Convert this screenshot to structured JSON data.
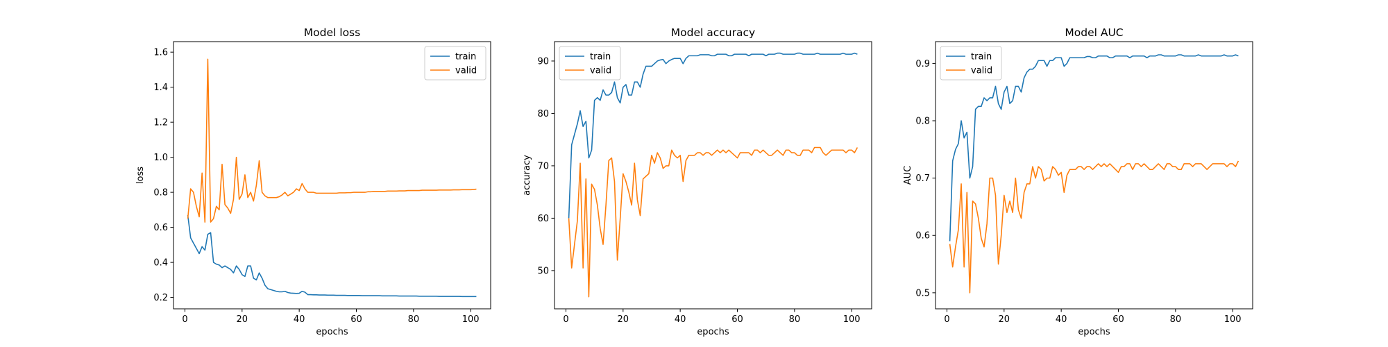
{
  "colors": {
    "train": "#1f77b4",
    "valid": "#ff7f0e",
    "axes": "#000000",
    "background": "#ffffff"
  },
  "chart_data": [
    {
      "type": "line",
      "title": "Model loss",
      "xlabel": "epochs",
      "ylabel": "loss",
      "xlim": [
        -4,
        107
      ],
      "ylim": [
        0.135,
        1.66
      ],
      "xticks": [
        0,
        20,
        40,
        60,
        80,
        100
      ],
      "yticks": [
        0.2,
        0.4,
        0.6,
        0.8,
        1.0,
        1.2,
        1.4,
        1.6
      ],
      "yticklabels": [
        "0.2",
        "0.4",
        "0.6",
        "0.8",
        "1.0",
        "1.2",
        "1.4",
        "1.6"
      ],
      "grid": false,
      "legend_position": "upper right",
      "series": [
        {
          "name": "train",
          "color": "#1f77b4",
          "values": [
            0.67,
            0.54,
            0.51,
            0.48,
            0.45,
            0.49,
            0.47,
            0.56,
            0.57,
            0.4,
            0.39,
            0.385,
            0.37,
            0.38,
            0.37,
            0.36,
            0.34,
            0.38,
            0.36,
            0.33,
            0.32,
            0.38,
            0.38,
            0.31,
            0.3,
            0.34,
            0.31,
            0.27,
            0.25,
            0.245,
            0.24,
            0.235,
            0.232,
            0.232,
            0.235,
            0.228,
            0.225,
            0.224,
            0.223,
            0.224,
            0.235,
            0.23,
            0.216,
            0.216,
            0.215,
            0.215,
            0.214,
            0.214,
            0.214,
            0.213,
            0.213,
            0.213,
            0.212,
            0.212,
            0.212,
            0.212,
            0.211,
            0.211,
            0.211,
            0.211,
            0.211,
            0.21,
            0.21,
            0.21,
            0.21,
            0.21,
            0.21,
            0.21,
            0.209,
            0.209,
            0.209,
            0.209,
            0.209,
            0.209,
            0.208,
            0.208,
            0.208,
            0.208,
            0.208,
            0.208,
            0.208,
            0.207,
            0.207,
            0.207,
            0.207,
            0.207,
            0.207,
            0.207,
            0.206,
            0.206,
            0.206,
            0.206,
            0.206,
            0.206,
            0.206,
            0.206,
            0.205,
            0.205,
            0.205,
            0.205,
            0.205,
            0.205
          ]
        },
        {
          "name": "valid",
          "color": "#ff7f0e",
          "values": [
            0.65,
            0.82,
            0.8,
            0.72,
            0.66,
            0.91,
            0.63,
            1.56,
            0.63,
            0.65,
            0.72,
            0.7,
            0.96,
            0.73,
            0.71,
            0.68,
            0.76,
            1.0,
            0.76,
            0.79,
            0.9,
            0.77,
            0.8,
            0.75,
            0.84,
            0.98,
            0.8,
            0.78,
            0.77,
            0.77,
            0.77,
            0.77,
            0.775,
            0.785,
            0.8,
            0.78,
            0.79,
            0.8,
            0.82,
            0.81,
            0.85,
            0.82,
            0.8,
            0.8,
            0.8,
            0.795,
            0.795,
            0.795,
            0.795,
            0.795,
            0.795,
            0.795,
            0.795,
            0.797,
            0.797,
            0.797,
            0.798,
            0.798,
            0.8,
            0.8,
            0.8,
            0.8,
            0.8,
            0.803,
            0.803,
            0.805,
            0.805,
            0.805,
            0.805,
            0.805,
            0.807,
            0.807,
            0.807,
            0.807,
            0.808,
            0.808,
            0.808,
            0.81,
            0.81,
            0.81,
            0.81,
            0.81,
            0.812,
            0.812,
            0.812,
            0.812,
            0.812,
            0.812,
            0.813,
            0.813,
            0.813,
            0.813,
            0.813,
            0.814,
            0.814,
            0.814,
            0.815,
            0.815,
            0.815,
            0.815,
            0.816,
            0.818
          ]
        }
      ]
    },
    {
      "type": "line",
      "title": "Model accuracy",
      "xlabel": "epochs",
      "ylabel": "accuracy",
      "xlim": [
        -4,
        107
      ],
      "ylim": [
        42.7,
        93.7
      ],
      "xticks": [
        0,
        20,
        40,
        60,
        80,
        100
      ],
      "yticks": [
        50,
        60,
        70,
        80,
        90
      ],
      "yticklabels": [
        "50",
        "60",
        "70",
        "80",
        "90"
      ],
      "grid": false,
      "legend_position": "upper left",
      "series": [
        {
          "name": "train",
          "color": "#1f77b4",
          "values": [
            60,
            74,
            76,
            78,
            80.5,
            77.5,
            78.5,
            71.5,
            73,
            82.5,
            83,
            82.5,
            84.5,
            83.5,
            83.5,
            84,
            86,
            83,
            82,
            85,
            85.5,
            83.5,
            83.5,
            86,
            86,
            85,
            87.5,
            89,
            89,
            89,
            89.5,
            90,
            90.2,
            90.3,
            89.5,
            90,
            90.3,
            90.5,
            90.5,
            90.5,
            89.5,
            90.5,
            91,
            91,
            91,
            91,
            91.2,
            91.2,
            91.2,
            91.2,
            91,
            91,
            91.3,
            91.3,
            91.3,
            91.3,
            91,
            91,
            91.3,
            91.3,
            91.3,
            91.3,
            91.3,
            91,
            91.3,
            91.3,
            91.3,
            91.3,
            91.3,
            91,
            91.3,
            91.3,
            91.3,
            91.5,
            91.5,
            91.3,
            91.3,
            91.3,
            91.3,
            91.3,
            91.5,
            91.5,
            91.3,
            91.3,
            91.3,
            91.3,
            91.3,
            91.5,
            91.3,
            91.3,
            91.3,
            91.3,
            91.3,
            91.3,
            91.3,
            91.3,
            91.5,
            91.3,
            91.3,
            91.3,
            91.5,
            91.3
          ]
        },
        {
          "name": "valid",
          "color": "#ff7f0e",
          "values": [
            60,
            50.5,
            55,
            59.5,
            70.5,
            50.5,
            67.5,
            45,
            66.5,
            65.5,
            62.5,
            58,
            55,
            62.5,
            71,
            71.5,
            67,
            52,
            60,
            68.5,
            67,
            65,
            62.5,
            70.5,
            63.5,
            60.5,
            67.5,
            68,
            68.5,
            72,
            70.5,
            72.5,
            71.5,
            69.5,
            70,
            70,
            73,
            72,
            71.5,
            72,
            67,
            71,
            72,
            72,
            72,
            72.5,
            72.5,
            72,
            72.5,
            72.5,
            72,
            72.5,
            73,
            72.5,
            73,
            72.5,
            73,
            72.5,
            72,
            71.5,
            72.5,
            72.5,
            72.5,
            72.5,
            72,
            73,
            73,
            72.5,
            73,
            72.5,
            72,
            72,
            72.5,
            73,
            72.5,
            72,
            73,
            73,
            72.5,
            72.5,
            72,
            72,
            73,
            73,
            73,
            72.5,
            73.5,
            73.5,
            73.5,
            72.5,
            72,
            72.5,
            73,
            73,
            73,
            73,
            73,
            72.5,
            73,
            73,
            72.5,
            73.5
          ]
        }
      ]
    },
    {
      "type": "line",
      "title": "Model AUC",
      "xlabel": "epochs",
      "ylabel": "AUC",
      "xlim": [
        -4,
        107
      ],
      "ylim": [
        0.472,
        0.938
      ],
      "xticks": [
        0,
        20,
        40,
        60,
        80,
        100
      ],
      "yticks": [
        0.5,
        0.6,
        0.7,
        0.8,
        0.9
      ],
      "yticklabels": [
        "0.5",
        "0.6",
        "0.7",
        "0.8",
        "0.9"
      ],
      "grid": false,
      "legend_position": "upper left",
      "series": [
        {
          "name": "train",
          "color": "#1f77b4",
          "values": [
            0.59,
            0.73,
            0.75,
            0.76,
            0.8,
            0.77,
            0.78,
            0.7,
            0.72,
            0.82,
            0.825,
            0.825,
            0.84,
            0.835,
            0.84,
            0.84,
            0.86,
            0.83,
            0.82,
            0.85,
            0.86,
            0.83,
            0.835,
            0.86,
            0.86,
            0.85,
            0.875,
            0.885,
            0.89,
            0.89,
            0.895,
            0.905,
            0.905,
            0.905,
            0.895,
            0.905,
            0.905,
            0.91,
            0.91,
            0.91,
            0.895,
            0.9,
            0.91,
            0.91,
            0.91,
            0.91,
            0.91,
            0.91,
            0.912,
            0.912,
            0.91,
            0.91,
            0.913,
            0.913,
            0.913,
            0.913,
            0.91,
            0.91,
            0.913,
            0.913,
            0.913,
            0.913,
            0.913,
            0.91,
            0.913,
            0.913,
            0.913,
            0.913,
            0.913,
            0.91,
            0.913,
            0.913,
            0.913,
            0.915,
            0.915,
            0.913,
            0.913,
            0.913,
            0.913,
            0.913,
            0.915,
            0.915,
            0.913,
            0.913,
            0.913,
            0.913,
            0.913,
            0.915,
            0.913,
            0.913,
            0.913,
            0.913,
            0.913,
            0.913,
            0.913,
            0.913,
            0.915,
            0.913,
            0.913,
            0.913,
            0.915,
            0.913
          ]
        },
        {
          "name": "valid",
          "color": "#ff7f0e",
          "values": [
            0.585,
            0.545,
            0.58,
            0.61,
            0.69,
            0.545,
            0.675,
            0.5,
            0.66,
            0.655,
            0.63,
            0.595,
            0.58,
            0.62,
            0.7,
            0.7,
            0.67,
            0.55,
            0.6,
            0.67,
            0.64,
            0.66,
            0.64,
            0.7,
            0.645,
            0.63,
            0.675,
            0.69,
            0.69,
            0.72,
            0.7,
            0.72,
            0.715,
            0.695,
            0.7,
            0.7,
            0.72,
            0.715,
            0.705,
            0.71,
            0.675,
            0.705,
            0.715,
            0.715,
            0.715,
            0.72,
            0.72,
            0.715,
            0.72,
            0.72,
            0.715,
            0.72,
            0.725,
            0.72,
            0.725,
            0.72,
            0.725,
            0.72,
            0.715,
            0.71,
            0.72,
            0.72,
            0.725,
            0.725,
            0.715,
            0.725,
            0.725,
            0.72,
            0.725,
            0.72,
            0.715,
            0.715,
            0.72,
            0.725,
            0.72,
            0.715,
            0.725,
            0.725,
            0.72,
            0.72,
            0.715,
            0.715,
            0.725,
            0.725,
            0.725,
            0.72,
            0.725,
            0.725,
            0.725,
            0.72,
            0.715,
            0.72,
            0.725,
            0.725,
            0.725,
            0.725,
            0.725,
            0.72,
            0.725,
            0.725,
            0.72,
            0.73
          ]
        }
      ]
    }
  ]
}
